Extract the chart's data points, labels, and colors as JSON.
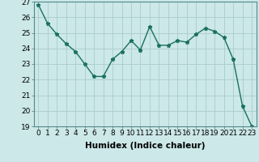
{
  "x": [
    0,
    1,
    2,
    3,
    4,
    5,
    6,
    7,
    8,
    9,
    10,
    11,
    12,
    13,
    14,
    15,
    16,
    17,
    18,
    19,
    20,
    21,
    22,
    23
  ],
  "y": [
    26.8,
    25.6,
    24.9,
    24.3,
    23.8,
    23.0,
    22.2,
    22.2,
    23.3,
    23.8,
    24.5,
    23.9,
    25.4,
    24.2,
    24.2,
    24.5,
    24.4,
    24.9,
    25.3,
    25.1,
    24.7,
    23.3,
    20.3,
    19.0
  ],
  "line_color": "#1a7060",
  "marker": "*",
  "marker_size": 3.5,
  "bg_color": "#cce8e8",
  "grid_color": "#aacccc",
  "xlabel": "Humidex (Indice chaleur)",
  "ylim": [
    19,
    27
  ],
  "yticks": [
    19,
    20,
    21,
    22,
    23,
    24,
    25,
    26,
    27
  ],
  "xticks": [
    0,
    1,
    2,
    3,
    4,
    5,
    6,
    7,
    8,
    9,
    10,
    11,
    12,
    13,
    14,
    15,
    16,
    17,
    18,
    19,
    20,
    21,
    22,
    23
  ],
  "xlabel_fontsize": 7.5,
  "tick_fontsize": 6.5,
  "line_width": 1.0
}
